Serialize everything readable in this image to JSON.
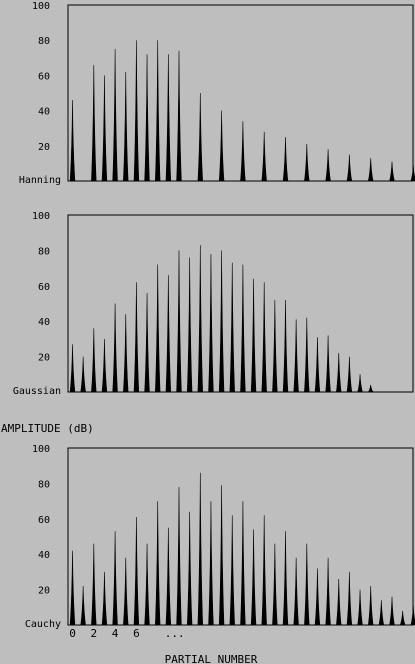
{
  "figure": {
    "ylabel": "AMPLITUDE (dB)",
    "xlabel": "PARTIAL NUMBER",
    "x_tick_labels": [
      "0",
      "2",
      "4",
      "6",
      "..."
    ]
  },
  "chart_data": [
    {
      "type": "bar",
      "window": "Hanning",
      "ylim": [
        0,
        100
      ],
      "y_ticks": [
        "100",
        "80",
        "60",
        "40",
        "20"
      ],
      "x": [
        0,
        0.5,
        1,
        1.5,
        2,
        2.5,
        3,
        3.5,
        4,
        4.5,
        5,
        6,
        7,
        8,
        9,
        10,
        11,
        12,
        13,
        14,
        15,
        16
      ],
      "values": [
        46,
        0,
        66,
        60,
        75,
        62,
        80,
        72,
        80,
        72,
        74,
        50,
        40,
        34,
        28,
        25,
        21,
        18,
        15,
        13,
        11,
        9
      ],
      "grid": false,
      "legend": "none"
    },
    {
      "type": "bar",
      "window": "Gaussian",
      "ylim": [
        0,
        100
      ],
      "y_ticks": [
        "100",
        "80",
        "60",
        "40",
        "20"
      ],
      "x": [
        0,
        0.5,
        1,
        1.5,
        2,
        2.5,
        3,
        3.5,
        4,
        4.5,
        5,
        5.5,
        6,
        6.5,
        7,
        7.5,
        8,
        8.5,
        9,
        9.5,
        10,
        10.5,
        11,
        11.5,
        12,
        12.5,
        13,
        13.5,
        14
      ],
      "values": [
        27,
        20,
        36,
        30,
        50,
        44,
        62,
        56,
        72,
        66,
        80,
        76,
        83,
        78,
        80,
        73,
        72,
        64,
        62,
        52,
        52,
        41,
        42,
        31,
        32,
        22,
        20,
        10,
        4
      ],
      "grid": false,
      "legend": "none"
    },
    {
      "type": "bar",
      "window": "Cauchy",
      "ylim": [
        0,
        100
      ],
      "y_ticks": [
        "100",
        "80",
        "60",
        "40",
        "20"
      ],
      "x": [
        0,
        0.5,
        1,
        1.5,
        2,
        2.5,
        3,
        3.5,
        4,
        4.5,
        5,
        5.5,
        6,
        6.5,
        7,
        7.5,
        8,
        8.5,
        9,
        9.5,
        10,
        10.5,
        11,
        11.5,
        12,
        12.5,
        13,
        13.5,
        14,
        14.5,
        15,
        15.5,
        16,
        16.5,
        17
      ],
      "values": [
        42,
        22,
        46,
        30,
        53,
        38,
        61,
        46,
        70,
        55,
        78,
        64,
        86,
        70,
        79,
        62,
        70,
        54,
        62,
        46,
        53,
        38,
        46,
        32,
        38,
        26,
        30,
        20,
        22,
        14,
        16,
        8,
        11,
        4,
        3
      ],
      "grid": false,
      "legend": "none"
    }
  ]
}
